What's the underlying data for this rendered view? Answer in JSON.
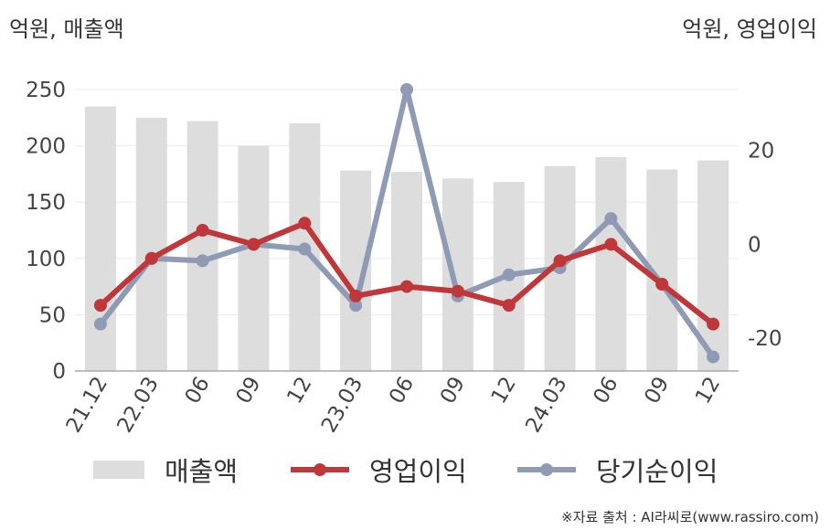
{
  "units": {
    "left": "억원, 매출액",
    "right": "억원, 영업이익"
  },
  "source": "※자료 출처 : AI라씨로(www.rassiro.com)",
  "chart_data": {
    "type": "bar",
    "categories": [
      "21.12",
      "22.03",
      "06",
      "09",
      "12",
      "23.03",
      "06",
      "09",
      "12",
      "24.03",
      "06",
      "09",
      "12"
    ],
    "y_left": {
      "ticks": [
        0,
        50,
        100,
        150,
        200,
        250
      ],
      "range": [
        0,
        250
      ]
    },
    "y_right": {
      "ticks": [
        -20,
        0,
        20
      ],
      "range": [
        -27,
        33
      ]
    },
    "grid": true,
    "legend_position": "bottom",
    "series": [
      {
        "name": "매출액",
        "type": "bar",
        "axis": "left",
        "color": "#dddddd",
        "values": [
          235,
          225,
          222,
          200,
          220,
          178,
          177,
          171,
          168,
          182,
          190,
          179,
          187
        ]
      },
      {
        "name": "영업이익",
        "type": "line",
        "axis": "right",
        "color": "#c0373a",
        "values": [
          -13,
          -3,
          3,
          0,
          4.5,
          -11,
          -9,
          -10,
          -13,
          -3.5,
          0,
          -8.5,
          -17
        ]
      },
      {
        "name": "당기순이익",
        "type": "line",
        "axis": "right",
        "color": "#8f9ab5",
        "values": [
          -17,
          -3,
          -3.5,
          0,
          -1,
          -13,
          33,
          -11,
          -6.5,
          -5,
          5.5,
          -8.5,
          -24
        ]
      }
    ]
  }
}
